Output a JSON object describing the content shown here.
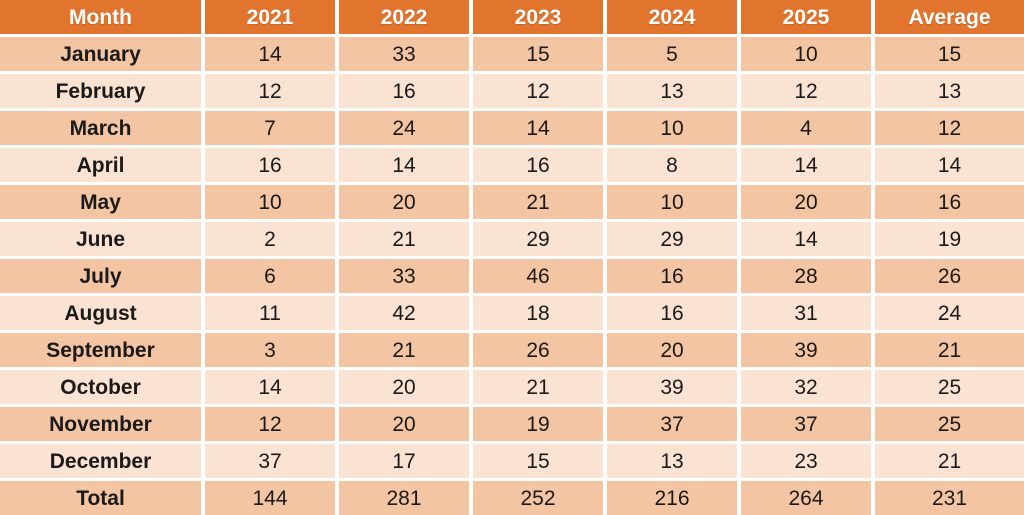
{
  "colors": {
    "header_bg": "#e2752e",
    "header_text": "#ffffff",
    "band_dark": "#f3c5a3",
    "band_light": "#fbe3d3",
    "separator": "#ffffff",
    "body_text": "#1c1a19"
  },
  "chart_data": {
    "type": "table",
    "title": "",
    "columns": [
      "Month",
      "2021",
      "2022",
      "2023",
      "2024",
      "2025",
      "Average"
    ],
    "rows": [
      {
        "cells": [
          "January",
          "14",
          "33",
          "15",
          "5",
          "10",
          "15"
        ]
      },
      {
        "cells": [
          "February",
          "12",
          "16",
          "12",
          "13",
          "12",
          "13"
        ]
      },
      {
        "cells": [
          "March",
          "7",
          "24",
          "14",
          "10",
          "4",
          "12"
        ]
      },
      {
        "cells": [
          "April",
          "16",
          "14",
          "16",
          "8",
          "14",
          "14"
        ]
      },
      {
        "cells": [
          "May",
          "10",
          "20",
          "21",
          "10",
          "20",
          "16"
        ]
      },
      {
        "cells": [
          "June",
          "2",
          "21",
          "29",
          "29",
          "14",
          "19"
        ]
      },
      {
        "cells": [
          "July",
          "6",
          "33",
          "46",
          "16",
          "28",
          "26"
        ]
      },
      {
        "cells": [
          "August",
          "11",
          "42",
          "18",
          "16",
          "31",
          "24"
        ]
      },
      {
        "cells": [
          "September",
          "3",
          "21",
          "26",
          "20",
          "39",
          "21"
        ]
      },
      {
        "cells": [
          "October",
          "14",
          "20",
          "21",
          "39",
          "32",
          "25"
        ]
      },
      {
        "cells": [
          "November",
          "12",
          "20",
          "19",
          "37",
          "37",
          "25"
        ]
      },
      {
        "cells": [
          "December",
          "37",
          "17",
          "15",
          "13",
          "23",
          "21"
        ]
      },
      {
        "cells": [
          "Total",
          "144",
          "281",
          "252",
          "216",
          "264",
          "231"
        ]
      }
    ]
  }
}
